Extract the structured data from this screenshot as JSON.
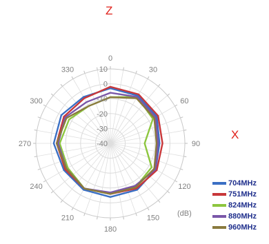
{
  "axis_tags": {
    "top": {
      "text": "Z",
      "color": "#e0211b"
    },
    "right": {
      "text": "X",
      "color": "#e0211b"
    }
  },
  "chart_data": {
    "type": "polar-line",
    "unit_label": "(dB)",
    "radial_ticks": [
      "-40",
      "-30",
      "-20",
      "-10",
      "0",
      "10"
    ],
    "radial_range": [
      -40,
      10
    ],
    "angle_ticks": [
      "0",
      "30",
      "60",
      "90",
      "120",
      "150",
      "180",
      "210",
      "240",
      "270",
      "300",
      "330"
    ],
    "grid": true,
    "legend_position": "bottom-right",
    "angles": [
      0,
      30,
      60,
      90,
      120,
      150,
      180,
      210,
      240,
      270,
      300,
      330
    ],
    "series": [
      {
        "name": "704MHz",
        "color": "#3a6fc4",
        "values": [
          -3,
          -3,
          -4,
          -7,
          -5,
          -4,
          -4,
          -4,
          -4,
          -2,
          -2,
          -4
        ]
      },
      {
        "name": "751MHz",
        "color": "#c8373a",
        "values": [
          -2,
          -2,
          -3,
          -5,
          -4,
          -5,
          -6,
          -5,
          -5,
          -4,
          -4,
          -5
        ]
      },
      {
        "name": "824MHz",
        "color": "#8dc63f",
        "values": [
          -9,
          -4,
          -7,
          -17,
          -8,
          -6,
          -6,
          -5,
          -7,
          -6,
          -8,
          -11
        ]
      },
      {
        "name": "880MHz",
        "color": "#7a57a8",
        "values": [
          -6,
          -4,
          -5,
          -8,
          -5,
          -7,
          -7,
          -5,
          -6,
          -5,
          -5,
          -8
        ]
      },
      {
        "name": "960MHz",
        "color": "#8a7a3e",
        "values": [
          -9,
          -5,
          -6,
          -9,
          -6,
          -6,
          -6,
          -5,
          -6,
          -4,
          -6,
          -11
        ]
      }
    ]
  }
}
